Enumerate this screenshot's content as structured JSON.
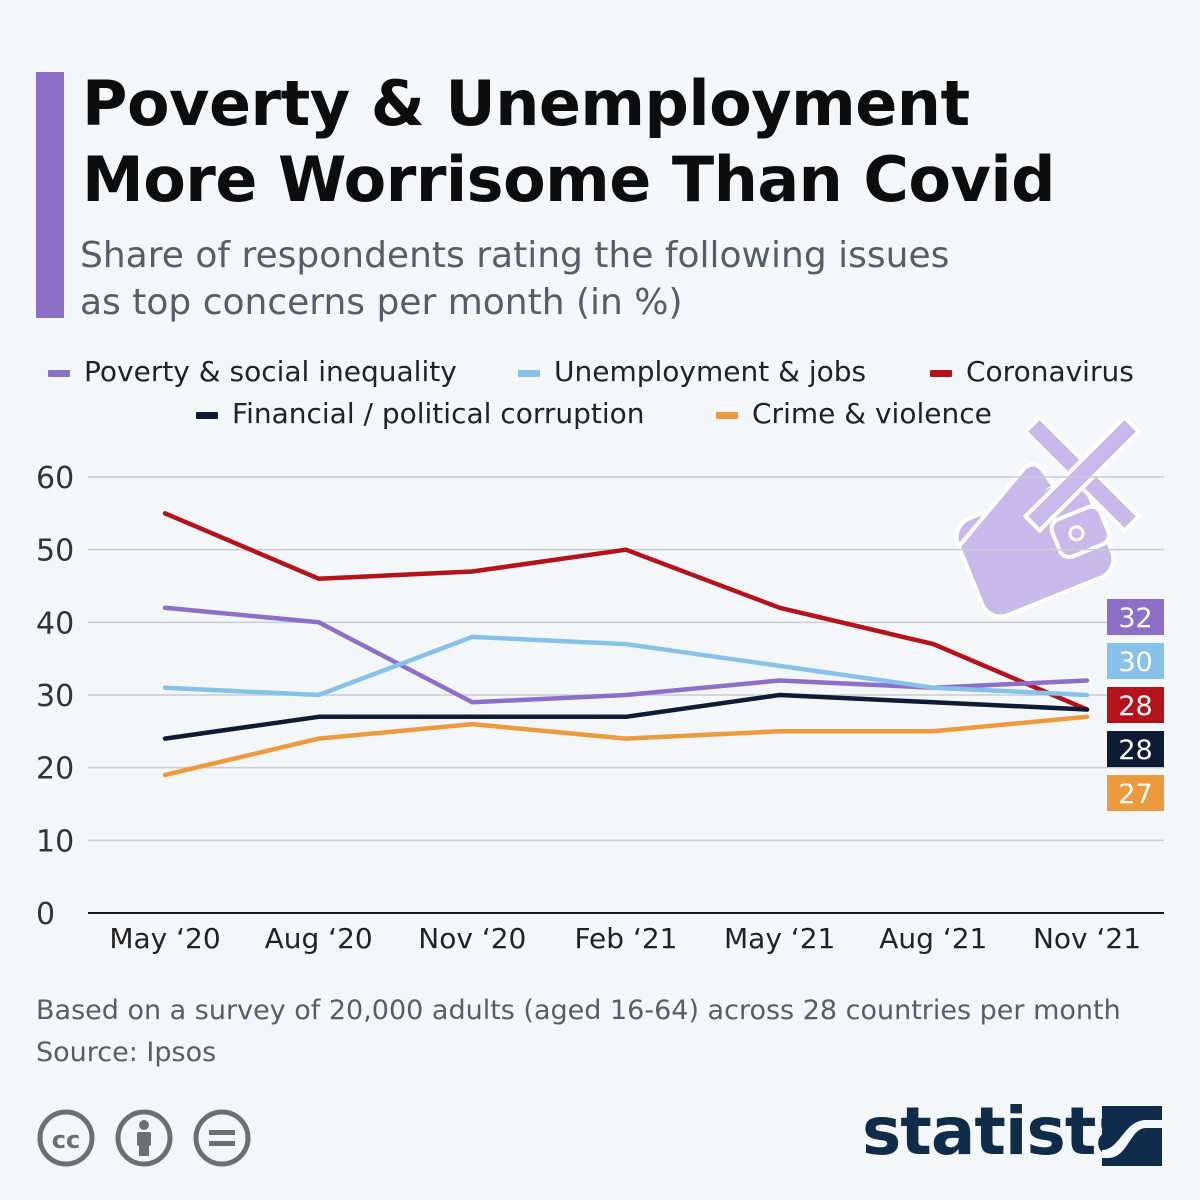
{
  "header": {
    "title_line1": "Poverty & Unemployment",
    "title_line2": "More Worrisome Than Covid",
    "subtitle_line1": "Share of respondents rating the following issues",
    "subtitle_line2": "as top concerns per month (in %)"
  },
  "chart_data": {
    "type": "line",
    "title": "Poverty & Unemployment More Worrisome Than Covid",
    "subtitle": "Share of respondents rating the following issues as top concerns per month (in %)",
    "categories": [
      "May '20",
      "Aug '20",
      "Nov '20",
      "Feb '21",
      "May '21",
      "Aug '21",
      "Nov '21"
    ],
    "category_labels": [
      "May ‘20",
      "Aug ‘20",
      "Nov ‘20",
      "Feb ‘21",
      "May ‘21",
      "Aug ‘21",
      "Nov ‘21"
    ],
    "ylim": [
      0,
      60
    ],
    "yticks": [
      0,
      10,
      20,
      30,
      40,
      50,
      60
    ],
    "grid": true,
    "legend_placement": "top",
    "series": [
      {
        "name": "Coronavirus",
        "color": "#b5121b",
        "values": [
          55,
          46,
          47,
          50,
          42,
          37,
          28
        ],
        "end_label": "28"
      },
      {
        "name": "Poverty & social inequality",
        "color": "#8e6fc7",
        "values": [
          42,
          40,
          29,
          30,
          32,
          31,
          32
        ],
        "end_label": "32"
      },
      {
        "name": "Unemployment & jobs",
        "color": "#85c1e9",
        "values": [
          31,
          30,
          38,
          37,
          34,
          31,
          30
        ],
        "end_label": "30"
      },
      {
        "name": "Financial / political corruption",
        "color": "#0d1b33",
        "values": [
          24,
          27,
          27,
          27,
          30,
          29,
          28
        ],
        "end_label": "28"
      },
      {
        "name": "Crime & violence",
        "color": "#ec9a3c",
        "values": [
          19,
          24,
          26,
          24,
          25,
          25,
          27
        ],
        "end_label": "27"
      }
    ],
    "legend": [
      {
        "label": "Poverty & social inequality",
        "color": "#8e6fc7"
      },
      {
        "label": "Unemployment & jobs",
        "color": "#85c1e9"
      },
      {
        "label": "Coronavirus",
        "color": "#b5121b"
      },
      {
        "label": "Financial / political corruption",
        "color": "#0d1b33"
      },
      {
        "label": "Crime & violence",
        "color": "#ec9a3c"
      }
    ],
    "end_labels_order": [
      "32",
      "30",
      "28",
      "28",
      "27"
    ]
  },
  "footer": {
    "note": "Based on a survey of 20,000 adults (aged 16-64) across 28 countries per month",
    "source": "Source: Ipsos",
    "cc_icons": [
      "cc-icon",
      "attribution-icon",
      "no-derivatives-icon"
    ],
    "brand": "statista"
  },
  "decoration": {
    "icon": "crossed-out-wallet-icon",
    "color": "#c9b8ea"
  }
}
